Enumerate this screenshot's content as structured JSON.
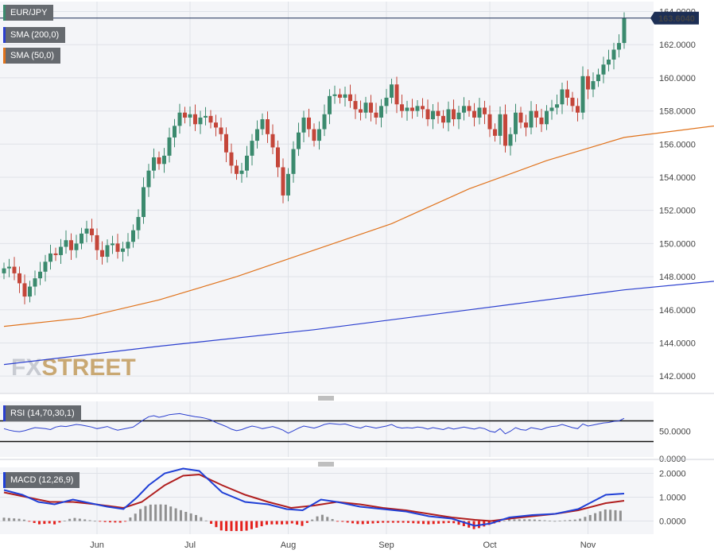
{
  "colors": {
    "background": "#ffffff",
    "plot_bg": "#f4f5f8",
    "grid": "#dfe2e8",
    "bull": "#3b8a6e",
    "bear": "#c4463a",
    "sma200": "#2b3fcf",
    "sma50": "#e0731c",
    "rsi": "#2b3fcf",
    "macd": "#1f3fd6",
    "signal": "#b01e1e",
    "hist_pos": "#909090",
    "hist_neg": "#e5201c",
    "price_label": "#1d2f55",
    "watermark": "#c9a873",
    "watermark2": "#d9dbe0"
  },
  "legend": {
    "symbol": "EUR/JPY",
    "sma200": "SMA (200,0)",
    "sma50": "SMA (50,0)",
    "rsi": "RSI (14,70,30,1)",
    "macd": "MACD (12,26,9)"
  },
  "watermark": {
    "part1": "FX",
    "part2": "STREET"
  },
  "price_label": "163.6040",
  "chart_data": [
    {
      "type": "candlestick",
      "title": "EUR/JPY",
      "y_ticks": [
        "164.0000",
        "162.0000",
        "160.0000",
        "158.0000",
        "156.0000",
        "154.0000",
        "152.0000",
        "150.0000",
        "148.0000",
        "146.0000",
        "144.0000",
        "142.0000"
      ],
      "x_ticks": [
        "Jun",
        "Jul",
        "Aug",
        "Sep",
        "Oct",
        "Nov"
      ],
      "ylim": [
        141.0,
        164.6
      ],
      "last_price": 163.604,
      "closes": [
        148.5,
        148.6,
        148.2,
        147.6,
        146.8,
        147.4,
        147.9,
        148.3,
        148.9,
        149.4,
        149.3,
        149.8,
        150.2,
        149.6,
        150.0,
        150.6,
        150.9,
        150.5,
        149.6,
        149.2,
        149.9,
        150.0,
        149.5,
        149.7,
        150.1,
        150.8,
        151.6,
        153.4,
        154.4,
        155.2,
        154.8,
        155.3,
        156.4,
        157.1,
        157.9,
        157.6,
        157.8,
        157.2,
        157.6,
        157.7,
        157.3,
        157.0,
        156.6,
        155.5,
        154.7,
        154.2,
        154.4,
        155.3,
        156.2,
        156.9,
        157.5,
        156.6,
        155.8,
        154.6,
        152.9,
        154.2,
        155.7,
        156.7,
        157.6,
        156.9,
        156.2,
        156.9,
        157.8,
        158.9,
        159.0,
        158.8,
        159.0,
        158.6,
        158.1,
        157.9,
        158.5,
        157.9,
        157.6,
        158.3,
        158.8,
        159.6,
        158.4,
        158.0,
        158.2,
        158.0,
        158.3,
        158.1,
        157.5,
        158.0,
        157.7,
        157.3,
        158.1,
        157.5,
        157.9,
        158.3,
        158.0,
        157.6,
        158.2,
        157.8,
        156.9,
        156.5,
        157.8,
        155.9,
        156.6,
        157.9,
        157.3,
        157.0,
        158.0,
        157.6,
        157.2,
        158.0,
        158.2,
        158.4,
        159.3,
        158.8,
        158.3,
        157.9,
        160.1,
        159.3,
        159.8,
        160.2,
        160.8,
        161.1,
        161.7,
        162.1,
        163.6
      ],
      "sma200": [
        [
          0,
          142.7
        ],
        [
          30,
          143.8
        ],
        [
          60,
          144.8
        ],
        [
          90,
          146.0
        ],
        [
          120,
          147.2
        ],
        [
          150,
          148.1
        ],
        [
          180,
          149.0
        ],
        [
          210,
          150.0
        ],
        [
          240,
          150.8
        ],
        [
          262,
          151.8
        ],
        [
          280,
          152.4
        ]
      ],
      "sma50": [
        [
          0,
          145.0
        ],
        [
          15,
          145.5
        ],
        [
          30,
          146.6
        ],
        [
          45,
          148.0
        ],
        [
          60,
          149.6
        ],
        [
          75,
          151.2
        ],
        [
          90,
          153.3
        ],
        [
          105,
          155.0
        ],
        [
          120,
          156.4
        ],
        [
          140,
          157.2
        ],
        [
          160,
          157.5
        ],
        [
          185,
          157.6
        ],
        [
          205,
          157.7
        ],
        [
          225,
          158.0
        ],
        [
          245,
          158.5
        ],
        [
          262,
          158.6
        ]
      ]
    },
    {
      "type": "line",
      "title": "RSI (14,70,30,1)",
      "y_ticks": [
        "50.0000",
        "0.0000"
      ],
      "upper": 70,
      "lower": 30,
      "ylim": [
        0,
        100
      ],
      "values": [
        55,
        52,
        50,
        49,
        51,
        54,
        57,
        56,
        55,
        53,
        58,
        60,
        59,
        61,
        63,
        62,
        60,
        58,
        55,
        57,
        59,
        55,
        52,
        54,
        56,
        58,
        65,
        72,
        78,
        80,
        77,
        79,
        82,
        83,
        84,
        82,
        80,
        78,
        77,
        75,
        72,
        67,
        63,
        59,
        54,
        51,
        53,
        57,
        60,
        58,
        55,
        57,
        59,
        56,
        52,
        46,
        51,
        56,
        60,
        58,
        56,
        59,
        63,
        65,
        64,
        63,
        64,
        61,
        58,
        56,
        60,
        58,
        56,
        58,
        60,
        63,
        58,
        56,
        57,
        56,
        58,
        57,
        54,
        57,
        55,
        53,
        57,
        54,
        56,
        58,
        56,
        54,
        57,
        55,
        50,
        48,
        55,
        45,
        50,
        57,
        53,
        52,
        57,
        55,
        53,
        57,
        59,
        60,
        63,
        60,
        57,
        55,
        64,
        60,
        62,
        64,
        66,
        67,
        69,
        70,
        75
      ]
    },
    {
      "type": "line",
      "title": "MACD (12,26,9)",
      "y_ticks": [
        "2.0000",
        "1.0000",
        "0.0000"
      ],
      "ylim": [
        -0.55,
        2.25
      ],
      "macd": [
        [
          0,
          1.3
        ],
        [
          8,
          1.1
        ],
        [
          15,
          0.8
        ],
        [
          22,
          0.7
        ],
        [
          30,
          0.9
        ],
        [
          35,
          0.8
        ],
        [
          45,
          0.6
        ],
        [
          52,
          0.5
        ],
        [
          58,
          1.0
        ],
        [
          63,
          1.5
        ],
        [
          70,
          2.0
        ],
        [
          78,
          2.2
        ],
        [
          85,
          2.1
        ],
        [
          95,
          1.2
        ],
        [
          105,
          0.8
        ],
        [
          115,
          0.7
        ],
        [
          123,
          0.5
        ],
        [
          130,
          0.45
        ],
        [
          138,
          0.9
        ],
        [
          145,
          0.8
        ],
        [
          155,
          0.6
        ],
        [
          165,
          0.5
        ],
        [
          175,
          0.4
        ],
        [
          185,
          0.2
        ],
        [
          195,
          0.1
        ],
        [
          205,
          -0.2
        ],
        [
          212,
          -0.1
        ],
        [
          220,
          0.15
        ],
        [
          230,
          0.25
        ],
        [
          240,
          0.3
        ],
        [
          250,
          0.5
        ],
        [
          262,
          1.1
        ],
        [
          270,
          1.15
        ]
      ],
      "signal": [
        [
          0,
          1.2
        ],
        [
          10,
          1.0
        ],
        [
          20,
          0.8
        ],
        [
          30,
          0.8
        ],
        [
          40,
          0.7
        ],
        [
          52,
          0.55
        ],
        [
          60,
          0.8
        ],
        [
          70,
          1.5
        ],
        [
          78,
          1.9
        ],
        [
          85,
          1.95
        ],
        [
          95,
          1.5
        ],
        [
          105,
          1.1
        ],
        [
          115,
          0.8
        ],
        [
          125,
          0.55
        ],
        [
          135,
          0.65
        ],
        [
          145,
          0.8
        ],
        [
          155,
          0.7
        ],
        [
          165,
          0.55
        ],
        [
          175,
          0.45
        ],
        [
          185,
          0.3
        ],
        [
          195,
          0.15
        ],
        [
          205,
          0.05
        ],
        [
          212,
          0.0
        ],
        [
          220,
          0.1
        ],
        [
          230,
          0.2
        ],
        [
          240,
          0.3
        ],
        [
          250,
          0.45
        ],
        [
          262,
          0.75
        ],
        [
          270,
          0.85
        ]
      ]
    }
  ]
}
